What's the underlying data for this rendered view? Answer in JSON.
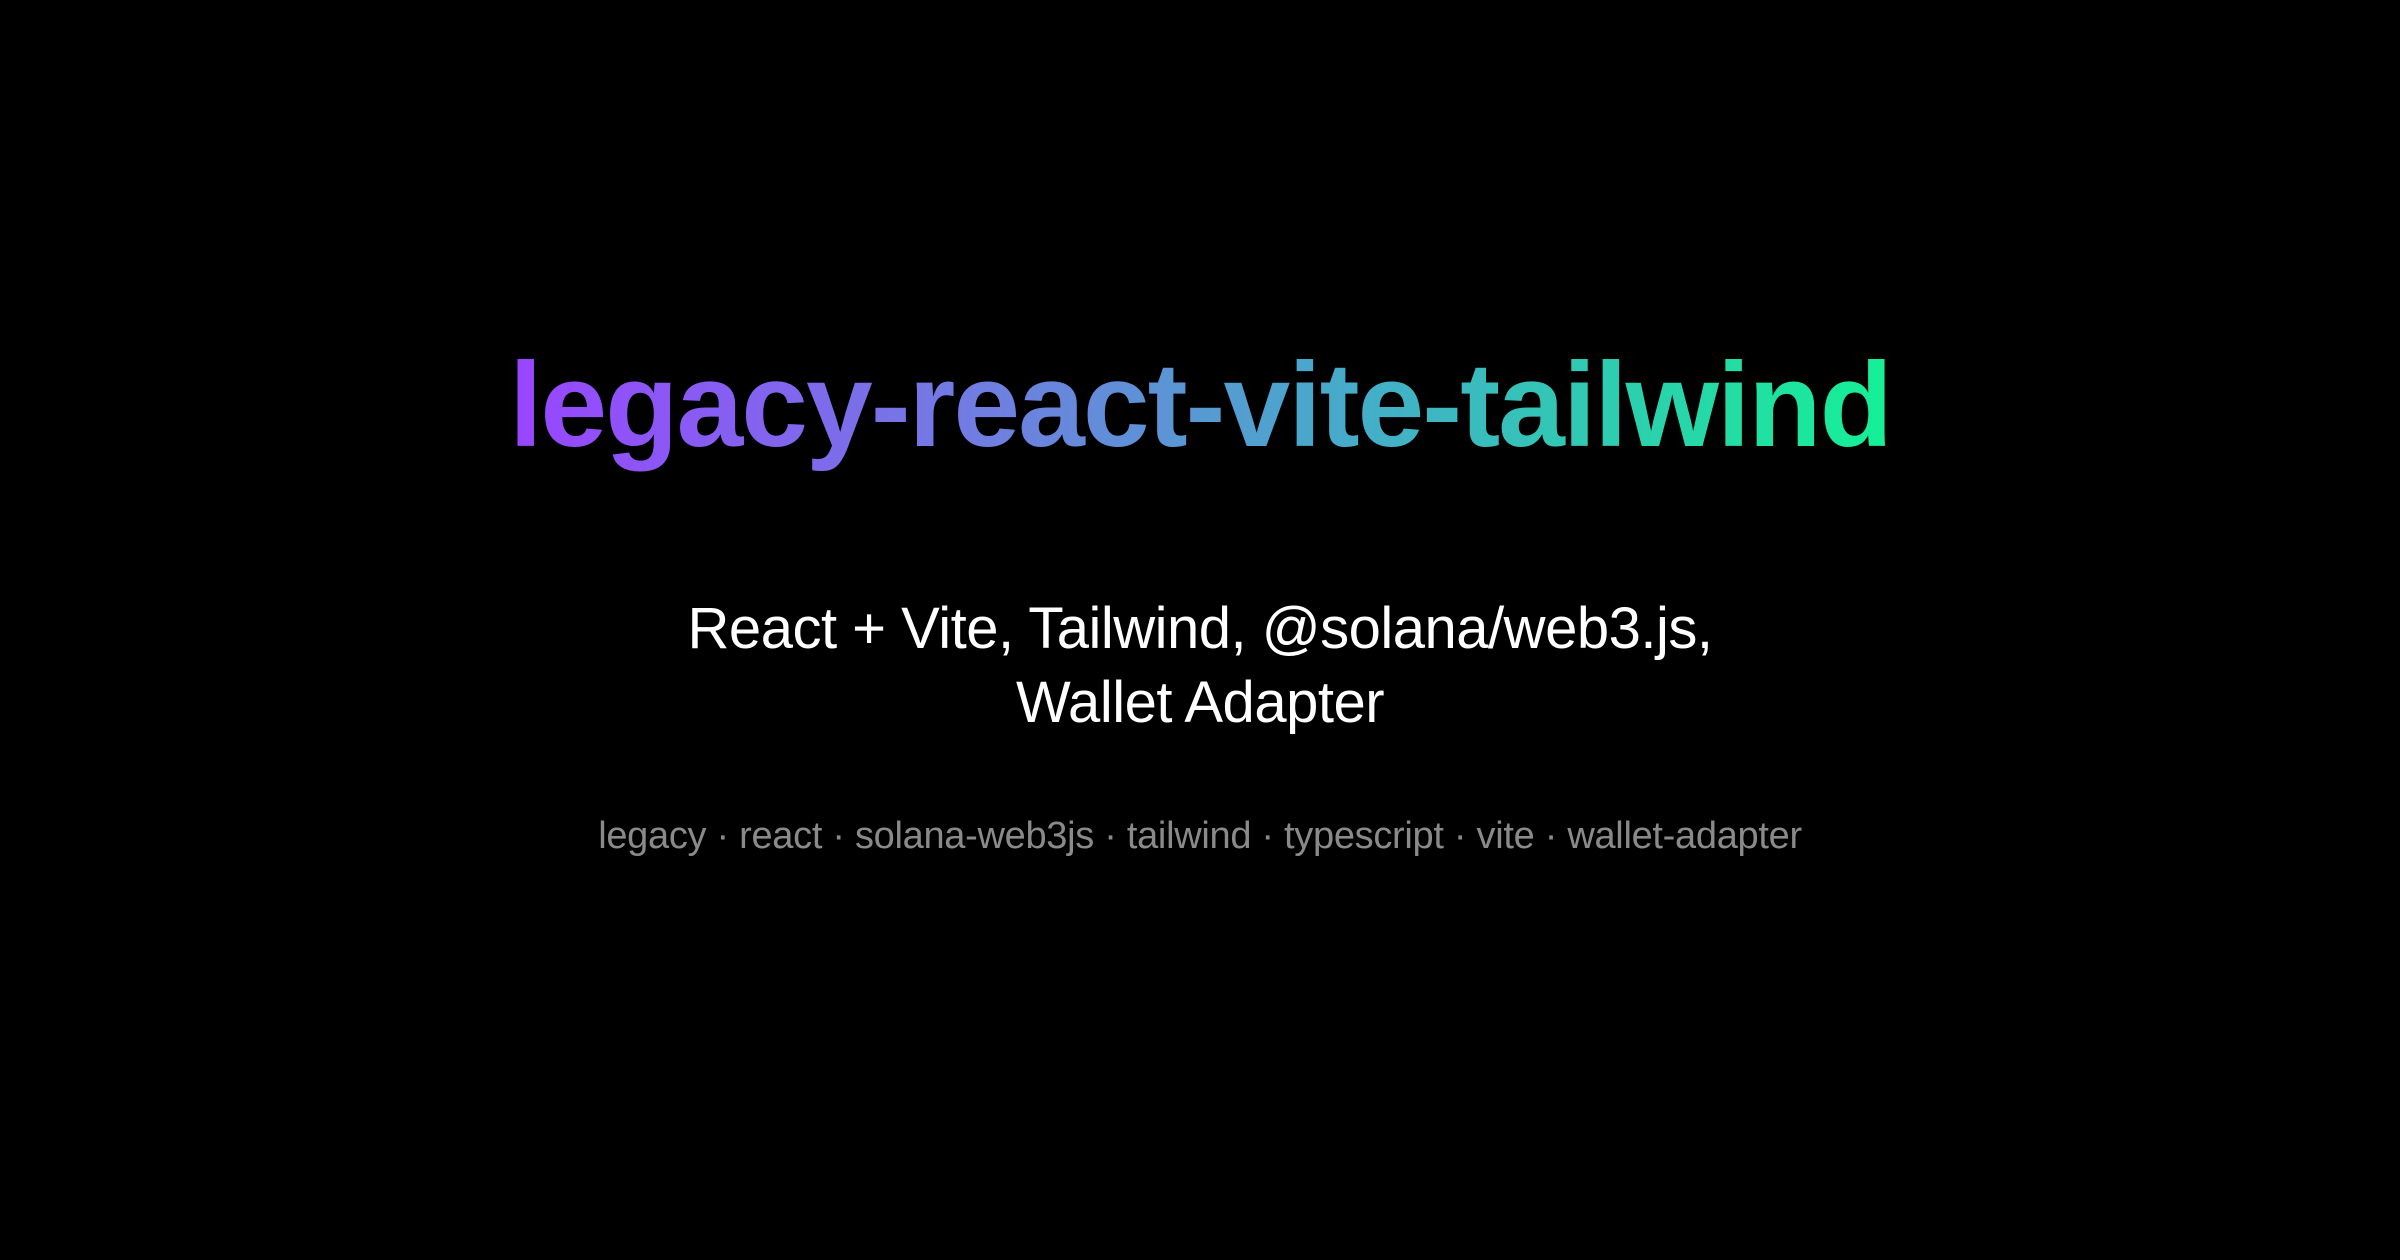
{
  "title": "legacy-react-vite-tailwind",
  "subtitle": {
    "line1": "React + Vite, Tailwind, @solana/web3.js,",
    "line2": "Wallet Adapter"
  },
  "tags_line": "legacy · react · solana-web3js · tailwind · typescript · vite · wallet-adapter",
  "colors": {
    "background": "#000000",
    "gradient_start": "#9945FF",
    "gradient_end": "#14F195",
    "subtitle": "#FFFFFF",
    "tags": "#8A8A8A"
  }
}
